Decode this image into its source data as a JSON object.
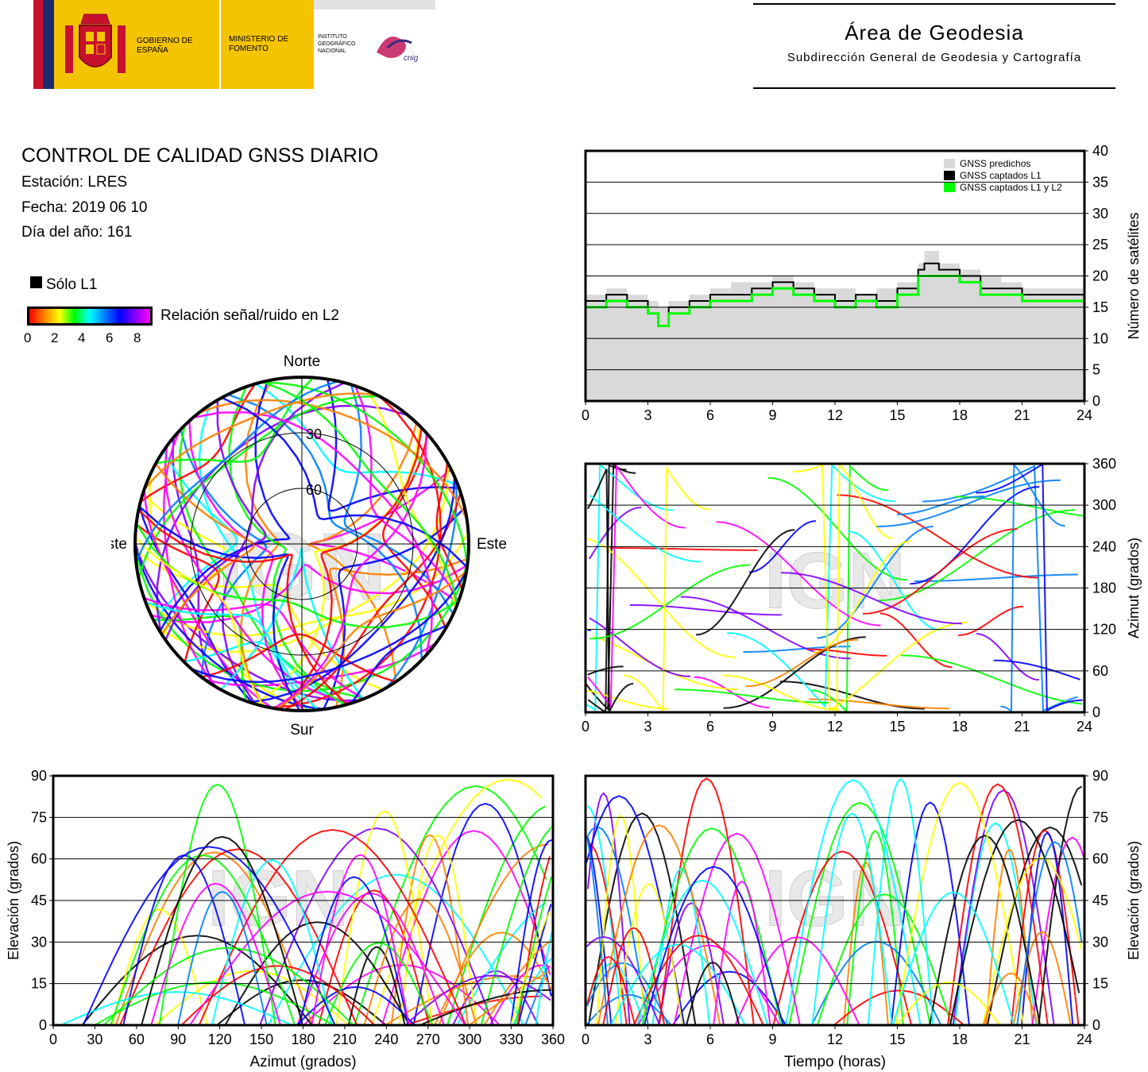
{
  "header": {
    "logo_gobierno": "GOBIERNO DE ESPAÑA",
    "logo_ministerio": "MINISTERIO DE FOMENTO",
    "logo_instituto": "INSTITUTO GEOGRÁFICO NACIONAL",
    "logo_cnig": "cnig",
    "area_title": "Área de Geodesia",
    "area_subtitle": "Subdirección General de Geodesia y Cartografía"
  },
  "info": {
    "title": "CONTROL DE CALIDAD GNSS DIARIO",
    "station": "Estación: LRES",
    "date": "Fecha: 2019 06 10",
    "doy": "Día del año: 161"
  },
  "legend": {
    "l1_only": "Sólo L1",
    "snr_label": "Relación señal/ruido en L2",
    "snr_ticks": [
      "0",
      "2",
      "4",
      "6",
      "8"
    ]
  },
  "watermark": "IGN",
  "colors": {
    "snr_scale": [
      "#ff0000",
      "#ff8000",
      "#ffff00",
      "#00ff00",
      "#00ffff",
      "#0080ff",
      "#0000ff",
      "#8000ff",
      "#ff00ff"
    ],
    "l1_only": "#000000",
    "predicted": "#d9d9d9",
    "captured_l1": "#000000",
    "captured_l1_l2": "#00ff00"
  },
  "chart_data": [
    {
      "id": "skyplot",
      "type": "scatter",
      "title": "",
      "directions": {
        "north": "Norte",
        "south": "Sur",
        "east": "Este",
        "west": "Oeste"
      },
      "ring_labels": [
        "30",
        "60"
      ],
      "grid": true
    },
    {
      "id": "satellite-count",
      "type": "area",
      "ylabel": "Número de satélites",
      "xlim": [
        0,
        24
      ],
      "ylim": [
        0,
        40
      ],
      "xticks": [
        "0",
        "3",
        "6",
        "9",
        "12",
        "15",
        "18",
        "21",
        "24"
      ],
      "yticks": [
        "0",
        "5",
        "10",
        "15",
        "20",
        "25",
        "30",
        "35",
        "40"
      ],
      "legend_position": "top-right",
      "series": [
        {
          "name": "GNSS predichos",
          "x": [
            0,
            1,
            2,
            3,
            3.5,
            4,
            5,
            6,
            7,
            8,
            9,
            10,
            11,
            12,
            13,
            14,
            15,
            16,
            16.3,
            17,
            18,
            19,
            20,
            21,
            22,
            23,
            24
          ],
          "values": [
            17,
            18,
            17,
            16,
            15,
            16,
            17,
            18,
            19,
            19,
            20,
            19,
            18,
            18,
            17,
            18,
            19,
            22,
            24,
            22,
            21,
            20,
            19,
            18,
            18,
            18,
            18
          ]
        },
        {
          "name": "GNSS captados L1",
          "x": [
            0,
            1,
            2,
            3,
            3.5,
            4,
            5,
            6,
            7,
            8,
            9,
            10,
            11,
            12,
            13,
            14,
            15,
            16,
            16.3,
            17,
            18,
            19,
            20,
            21,
            22,
            23,
            24
          ],
          "values": [
            16,
            17,
            16,
            14,
            12,
            15,
            16,
            17,
            17,
            18,
            19,
            18,
            17,
            16,
            17,
            16,
            18,
            21,
            22,
            21,
            20,
            18,
            18,
            17,
            17,
            17,
            17
          ]
        },
        {
          "name": "GNSS captados L1 y L2",
          "x": [
            0,
            1,
            2,
            3,
            3.5,
            4,
            5,
            6,
            7,
            8,
            9,
            10,
            11,
            12,
            13,
            14,
            15,
            16,
            16.3,
            17,
            18,
            19,
            20,
            21,
            22,
            23,
            24
          ],
          "values": [
            15,
            16,
            15,
            14,
            12,
            14,
            15,
            16,
            16,
            17,
            18,
            17,
            16,
            15,
            16,
            15,
            17,
            20,
            20,
            20,
            19,
            17,
            17,
            16,
            16,
            16,
            17
          ]
        }
      ],
      "grid": true
    },
    {
      "id": "azimuth-time",
      "type": "scatter",
      "ylabel": "Azimut (grados)",
      "xlim": [
        0,
        24
      ],
      "ylim": [
        0,
        360
      ],
      "xticks": [
        "0",
        "3",
        "6",
        "9",
        "12",
        "15",
        "18",
        "21",
        "24"
      ],
      "yticks": [
        "0",
        "60",
        "120",
        "180",
        "240",
        "300",
        "360"
      ],
      "grid": true
    },
    {
      "id": "elevation-azimuth",
      "type": "scatter",
      "xlabel": "Azimut (grados)",
      "ylabel": "Elevación (grados)",
      "xlim": [
        0,
        360
      ],
      "ylim": [
        0,
        90
      ],
      "xticks": [
        "0",
        "30",
        "60",
        "90",
        "120",
        "150",
        "180",
        "210",
        "240",
        "270",
        "300",
        "330",
        "360"
      ],
      "yticks": [
        "0",
        "15",
        "30",
        "45",
        "60",
        "75",
        "90"
      ],
      "grid": true
    },
    {
      "id": "elevation-time",
      "type": "scatter",
      "xlabel": "Tiempo (horas)",
      "ylabel": "Elevación (grados)",
      "xlim": [
        0,
        24
      ],
      "ylim": [
        0,
        90
      ],
      "xticks": [
        "0",
        "3",
        "6",
        "9",
        "12",
        "15",
        "18",
        "21",
        "24"
      ],
      "yticks": [
        "0",
        "15",
        "30",
        "45",
        "60",
        "75",
        "90"
      ],
      "grid": true
    }
  ]
}
